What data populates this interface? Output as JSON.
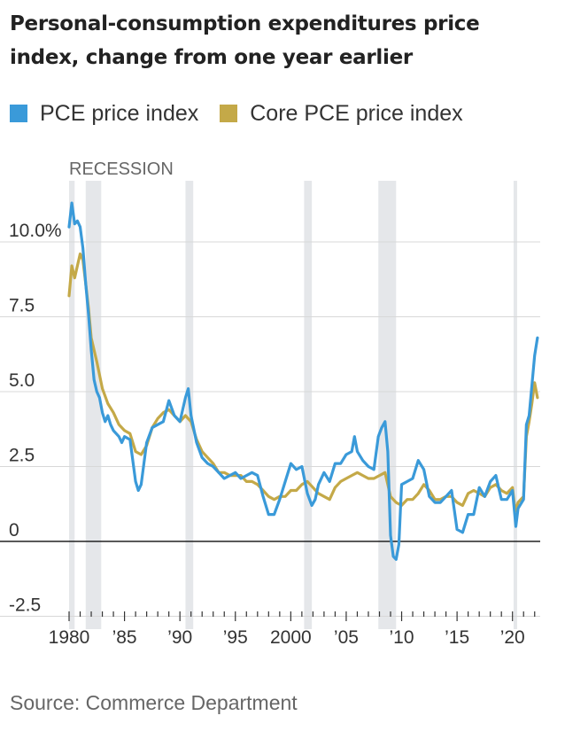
{
  "title": "Personal-consumption expenditures price index, change from one year earlier",
  "source": "Source: Commerce Department",
  "colors": {
    "pce": "#3a9ad9",
    "core": "#c4a948",
    "recession": "#e5e7ea",
    "grid": "#d8d8d8",
    "zero": "#222222",
    "text": "#333333"
  },
  "chart_data": {
    "type": "line",
    "title": "Personal-consumption expenditures price index, change from one year earlier",
    "xlabel": "",
    "ylabel": "",
    "xlim": [
      1980,
      2022.5
    ],
    "ylim": [
      -3,
      12
    ],
    "grid": true,
    "legend_position": "top-left",
    "recession_label": "RECESSION",
    "recessions": [
      [
        1980.0,
        1980.5
      ],
      [
        1981.5,
        1982.9
      ],
      [
        1990.5,
        1991.2
      ],
      [
        2001.2,
        2001.9
      ],
      [
        2007.9,
        2009.5
      ],
      [
        2020.1,
        2020.4
      ]
    ],
    "y_ticks": [
      {
        "value": 10,
        "label": "10.0%"
      },
      {
        "value": 7.5,
        "label": "7.5"
      },
      {
        "value": 5,
        "label": "5.0"
      },
      {
        "value": 2.5,
        "label": "2.5"
      },
      {
        "value": 0,
        "label": "0"
      },
      {
        "value": -2.5,
        "label": "-2.5"
      }
    ],
    "x_ticks": [
      {
        "value": 1980,
        "label": "1980"
      },
      {
        "value": 1985,
        "label": "’85"
      },
      {
        "value": 1990,
        "label": "’90"
      },
      {
        "value": 1995,
        "label": "’95"
      },
      {
        "value": 2000,
        "label": "2000"
      },
      {
        "value": 2005,
        "label": "’05"
      },
      {
        "value": 2010,
        "label": "’10"
      },
      {
        "value": 2015,
        "label": "’15"
      },
      {
        "value": 2020,
        "label": "’20"
      }
    ],
    "series": [
      {
        "name": "PCE price index",
        "x": [
          1980.0,
          1980.25,
          1980.5,
          1980.75,
          1981.0,
          1981.25,
          1981.5,
          1981.75,
          1982.0,
          1982.25,
          1982.5,
          1982.75,
          1983.0,
          1983.25,
          1983.5,
          1983.75,
          1984.0,
          1984.25,
          1984.5,
          1984.75,
          1985.0,
          1985.5,
          1986.0,
          1986.25,
          1986.5,
          1986.75,
          1987.0,
          1987.5,
          1988.0,
          1988.5,
          1989.0,
          1989.5,
          1990.0,
          1990.5,
          1990.75,
          1991.0,
          1991.5,
          1992.0,
          1992.5,
          1993.0,
          1993.5,
          1994.0,
          1994.5,
          1995.0,
          1995.5,
          1996.0,
          1996.5,
          1997.0,
          1997.5,
          1998.0,
          1998.5,
          1999.0,
          1999.5,
          2000.0,
          2000.5,
          2001.0,
          2001.5,
          2001.9,
          2002.2,
          2002.5,
          2003.0,
          2003.5,
          2004.0,
          2004.5,
          2005.0,
          2005.5,
          2005.75,
          2006.0,
          2006.5,
          2007.0,
          2007.5,
          2007.9,
          2008.2,
          2008.5,
          2008.75,
          2009.0,
          2009.25,
          2009.5,
          2009.75,
          2010.0,
          2010.5,
          2011.0,
          2011.5,
          2012.0,
          2012.5,
          2013.0,
          2013.5,
          2014.0,
          2014.5,
          2015.0,
          2015.5,
          2016.0,
          2016.5,
          2017.0,
          2017.5,
          2018.0,
          2018.5,
          2019.0,
          2019.5,
          2020.0,
          2020.3,
          2020.5,
          2021.0,
          2021.25,
          2021.5,
          2021.75,
          2022.0,
          2022.25
        ],
        "values": [
          10.5,
          11.3,
          10.6,
          10.7,
          10.5,
          9.8,
          8.6,
          7.6,
          6.4,
          5.4,
          5.0,
          4.8,
          4.3,
          4.0,
          4.2,
          3.9,
          3.7,
          3.6,
          3.5,
          3.3,
          3.5,
          3.4,
          2.0,
          1.7,
          1.9,
          2.6,
          3.3,
          3.8,
          3.9,
          4.0,
          4.7,
          4.2,
          4.0,
          4.8,
          5.1,
          4.2,
          3.3,
          2.8,
          2.6,
          2.5,
          2.3,
          2.1,
          2.2,
          2.3,
          2.1,
          2.2,
          2.3,
          2.2,
          1.5,
          0.9,
          0.9,
          1.4,
          2.0,
          2.6,
          2.4,
          2.5,
          1.6,
          1.2,
          1.4,
          1.9,
          2.3,
          2.0,
          2.6,
          2.6,
          2.9,
          3.0,
          3.5,
          3.0,
          2.7,
          2.5,
          2.4,
          3.5,
          3.8,
          4.0,
          3.0,
          0.2,
          -0.5,
          -0.6,
          -0.1,
          1.9,
          2.0,
          2.1,
          2.7,
          2.4,
          1.5,
          1.3,
          1.3,
          1.5,
          1.7,
          0.4,
          0.3,
          0.9,
          0.9,
          1.8,
          1.5,
          2.0,
          2.2,
          1.4,
          1.4,
          1.7,
          0.5,
          1.1,
          1.4,
          3.9,
          4.2,
          5.2,
          6.2,
          6.8
        ]
      },
      {
        "name": "Core PCE price index",
        "x": [
          1980.0,
          1980.25,
          1980.5,
          1980.75,
          1981.0,
          1981.25,
          1981.5,
          1981.75,
          1982.0,
          1982.5,
          1983.0,
          1983.5,
          1984.0,
          1984.5,
          1985.0,
          1985.5,
          1986.0,
          1986.5,
          1987.0,
          1987.5,
          1988.0,
          1988.5,
          1989.0,
          1989.5,
          1990.0,
          1990.5,
          1991.0,
          1991.5,
          1992.0,
          1992.5,
          1993.0,
          1993.5,
          1994.0,
          1994.5,
          1995.0,
          1995.5,
          1996.0,
          1996.5,
          1997.0,
          1997.5,
          1998.0,
          1998.5,
          1999.0,
          1999.5,
          2000.0,
          2000.5,
          2001.0,
          2001.5,
          2002.0,
          2002.5,
          2003.0,
          2003.5,
          2004.0,
          2004.5,
          2005.0,
          2005.5,
          2006.0,
          2006.5,
          2007.0,
          2007.5,
          2008.0,
          2008.5,
          2009.0,
          2009.5,
          2010.0,
          2010.5,
          2011.0,
          2011.5,
          2012.0,
          2012.5,
          2013.0,
          2013.5,
          2014.0,
          2014.5,
          2015.0,
          2015.5,
          2016.0,
          2016.5,
          2017.0,
          2017.5,
          2018.0,
          2018.5,
          2019.0,
          2019.5,
          2020.0,
          2020.25,
          2020.5,
          2021.0,
          2021.25,
          2021.5,
          2021.75,
          2022.0,
          2022.25
        ],
        "values": [
          8.2,
          9.2,
          8.8,
          9.2,
          9.6,
          9.4,
          8.6,
          7.8,
          6.8,
          6.0,
          5.1,
          4.6,
          4.3,
          3.9,
          3.7,
          3.6,
          3.0,
          2.9,
          3.2,
          3.8,
          4.1,
          4.3,
          4.4,
          4.2,
          4.0,
          4.2,
          4.0,
          3.4,
          3.0,
          2.8,
          2.6,
          2.3,
          2.3,
          2.2,
          2.2,
          2.2,
          2.0,
          2.0,
          1.9,
          1.7,
          1.5,
          1.4,
          1.5,
          1.5,
          1.7,
          1.7,
          1.9,
          2.0,
          1.8,
          1.6,
          1.5,
          1.4,
          1.8,
          2.0,
          2.1,
          2.2,
          2.3,
          2.2,
          2.1,
          2.1,
          2.2,
          2.3,
          1.5,
          1.3,
          1.2,
          1.4,
          1.4,
          1.6,
          1.9,
          1.7,
          1.4,
          1.4,
          1.5,
          1.5,
          1.3,
          1.2,
          1.6,
          1.7,
          1.6,
          1.5,
          1.8,
          1.9,
          1.7,
          1.6,
          1.8,
          1.0,
          1.3,
          1.5,
          3.5,
          4.0,
          4.6,
          5.3,
          4.8
        ]
      }
    ]
  }
}
